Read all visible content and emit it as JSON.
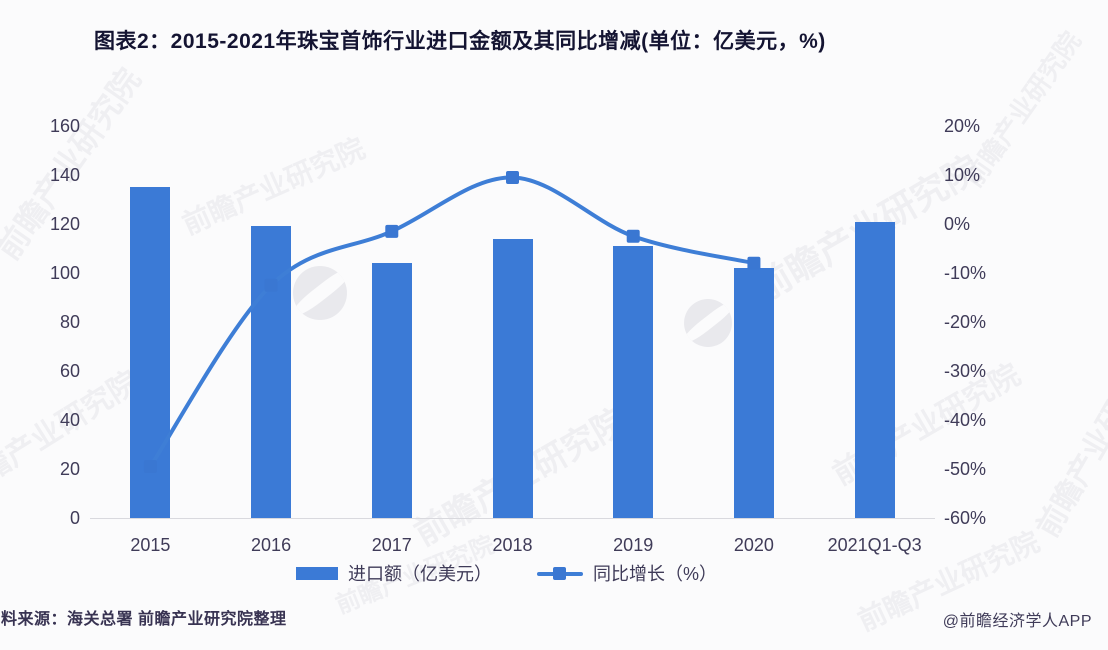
{
  "title": "图表2：2015-2021年珠宝首饰行业进口金额及其同比增减(单位：亿美元，%)",
  "footer": {
    "source_note": "料来源：海关总署 前瞻产业研究院整理",
    "credit": "@前瞻经济学人APP"
  },
  "watermark": {
    "text": "前瞻产业研究院"
  },
  "colors": {
    "bar": "#3b7ad6",
    "line": "#3e7ed6",
    "marker": "#3a77d2",
    "axis_text": "#3f3b58",
    "title_text": "#141432",
    "baseline": "#d9d9de",
    "background": "#fbfbfc"
  },
  "legend": {
    "items": [
      {
        "label": "进口额（亿美元）",
        "type": "bar"
      },
      {
        "label": "同比增长（%）",
        "type": "line"
      }
    ]
  },
  "chart_data": {
    "type": "bar+line",
    "title": "图表2：2015-2021年珠宝首饰行业进口金额及其同比增减(单位：亿美元，%)",
    "categories": [
      "2015",
      "2016",
      "2017",
      "2018",
      "2019",
      "2020",
      "2021Q1-Q3"
    ],
    "series": [
      {
        "name": "进口额（亿美元）",
        "type": "bar",
        "axis": "left",
        "values": [
          135,
          119,
          104,
          114,
          111,
          102,
          121
        ]
      },
      {
        "name": "同比增长（%）",
        "type": "line",
        "axis": "right",
        "values": [
          -49.5,
          -12.5,
          -1.5,
          9.5,
          -2.5,
          -8,
          null
        ]
      }
    ],
    "left_axis": {
      "min": 0,
      "max": 160,
      "ticks": [
        0,
        20,
        40,
        60,
        80,
        100,
        120,
        140,
        160
      ]
    },
    "right_axis": {
      "min": -60,
      "max": 20,
      "ticks": [
        20,
        10,
        0,
        -10,
        -20,
        -30,
        -40,
        -50,
        -60
      ],
      "tick_labels": [
        "20%",
        "10%",
        "0%",
        "-10%",
        "-20%",
        "-30%",
        "-40%",
        "-50%",
        "-60%"
      ]
    },
    "grid": "off",
    "legend_position": "bottom"
  }
}
